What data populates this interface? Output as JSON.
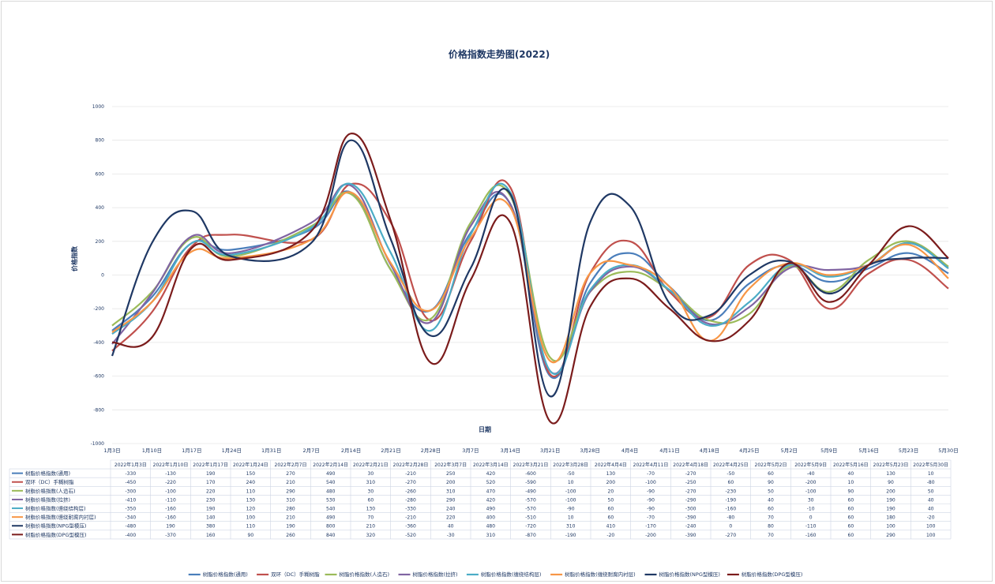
{
  "chart_data": {
    "type": "line",
    "title": "价格指数走势图(2022)",
    "xlabel": "日期",
    "ylabel": "价格指数",
    "ylim": [
      -1000,
      1000
    ],
    "y_ticks": [
      -1000,
      -800,
      -600,
      -400,
      -200,
      0,
      200,
      400,
      600,
      800,
      1000
    ],
    "x_tick_labels": [
      "1月3日",
      "1月10日",
      "1月17日",
      "1月24日",
      "1月31日",
      "2月7日",
      "2月14日",
      "2月21日",
      "2月28日",
      "3月7日",
      "3月14日",
      "3月21日",
      "3月28日",
      "4月4日",
      "4月11日",
      "4月18日",
      "4月25日",
      "5月2日",
      "5月9日",
      "5月16日",
      "5月23日",
      "5月30日"
    ],
    "grid": true,
    "legend_position": "bottom",
    "table_categories": [
      "2022年1月3日",
      "2022年1月10日",
      "2022年1月17日",
      "2022年1月24日",
      "2022年2月7日",
      "2022年2月14日",
      "2022年2月21日",
      "2022年2月28日",
      "2022年3月7日",
      "2022年3月14日",
      "2022年3月21日",
      "2022年3月28日",
      "2022年4月4日",
      "2022年4月11日",
      "2022年4月18日",
      "2022年4月25日",
      "2022年5月2日",
      "2022年5月9日",
      "2022年5月16日",
      "2022年5月23日",
      "2022年5月30日"
    ],
    "x_positions": [
      0,
      1,
      2,
      3,
      5,
      6,
      7,
      8,
      9,
      10,
      11,
      12,
      13,
      14,
      15,
      16,
      17,
      18,
      19,
      20,
      21
    ],
    "series": [
      {
        "name": "树脂价格指数(通用)",
        "color": "#4a7ebb",
        "values": [
          -330,
          -130,
          190,
          150,
          270,
          490,
          30,
          -210,
          250,
          420,
          -600,
          -50,
          130,
          -70,
          -270,
          -50,
          60,
          -40,
          40,
          130,
          10
        ]
      },
      {
        "name": "双环（DC）手糊树脂",
        "color": "#c0504d",
        "values": [
          -450,
          -220,
          170,
          240,
          210,
          540,
          310,
          -270,
          200,
          520,
          -590,
          10,
          200,
          -100,
          -250,
          60,
          90,
          -200,
          10,
          90,
          -80
        ]
      },
      {
        "name": "树脂价格指数(人造石)",
        "color": "#9bbb59",
        "values": [
          -300,
          -100,
          220,
          110,
          290,
          480,
          30,
          -260,
          310,
          470,
          -490,
          -100,
          20,
          -90,
          -270,
          -230,
          50,
          -100,
          90,
          200,
          50
        ]
      },
      {
        "name": "树脂价格指数(拉挤)",
        "color": "#8064a2",
        "values": [
          -410,
          -110,
          230,
          130,
          310,
          530,
          60,
          -280,
          290,
          420,
          -570,
          -100,
          50,
          -90,
          -290,
          -190,
          40,
          30,
          60,
          190,
          40
        ]
      },
      {
        "name": "树脂价格指数(缠绕结构层)",
        "color": "#4bacc6",
        "values": [
          -350,
          -160,
          190,
          120,
          280,
          540,
          130,
          -330,
          240,
          490,
          -570,
          -90,
          60,
          -90,
          -300,
          -160,
          60,
          -10,
          60,
          190,
          40
        ]
      },
      {
        "name": "树脂价格指数(缠绕耐腐内衬层)",
        "color": "#f79646",
        "values": [
          -340,
          -160,
          140,
          100,
          210,
          490,
          70,
          -210,
          220,
          400,
          -510,
          10,
          60,
          -70,
          -390,
          -80,
          70,
          0,
          60,
          180,
          -20
        ]
      },
      {
        "name": "树脂价格指数(NPG型模压)",
        "color": "#1f3864",
        "values": [
          -480,
          190,
          380,
          110,
          190,
          800,
          210,
          -360,
          40,
          480,
          -720,
          310,
          410,
          -170,
          -240,
          0,
          80,
          -110,
          60,
          100,
          100
        ]
      },
      {
        "name": "树脂价格指数(DPG型模压)",
        "color": "#7b1c1c",
        "values": [
          -400,
          -370,
          160,
          90,
          260,
          840,
          320,
          -520,
          -30,
          310,
          -870,
          -190,
          -20,
          -200,
          -390,
          -270,
          70,
          -160,
          60,
          290,
          100
        ]
      }
    ]
  }
}
